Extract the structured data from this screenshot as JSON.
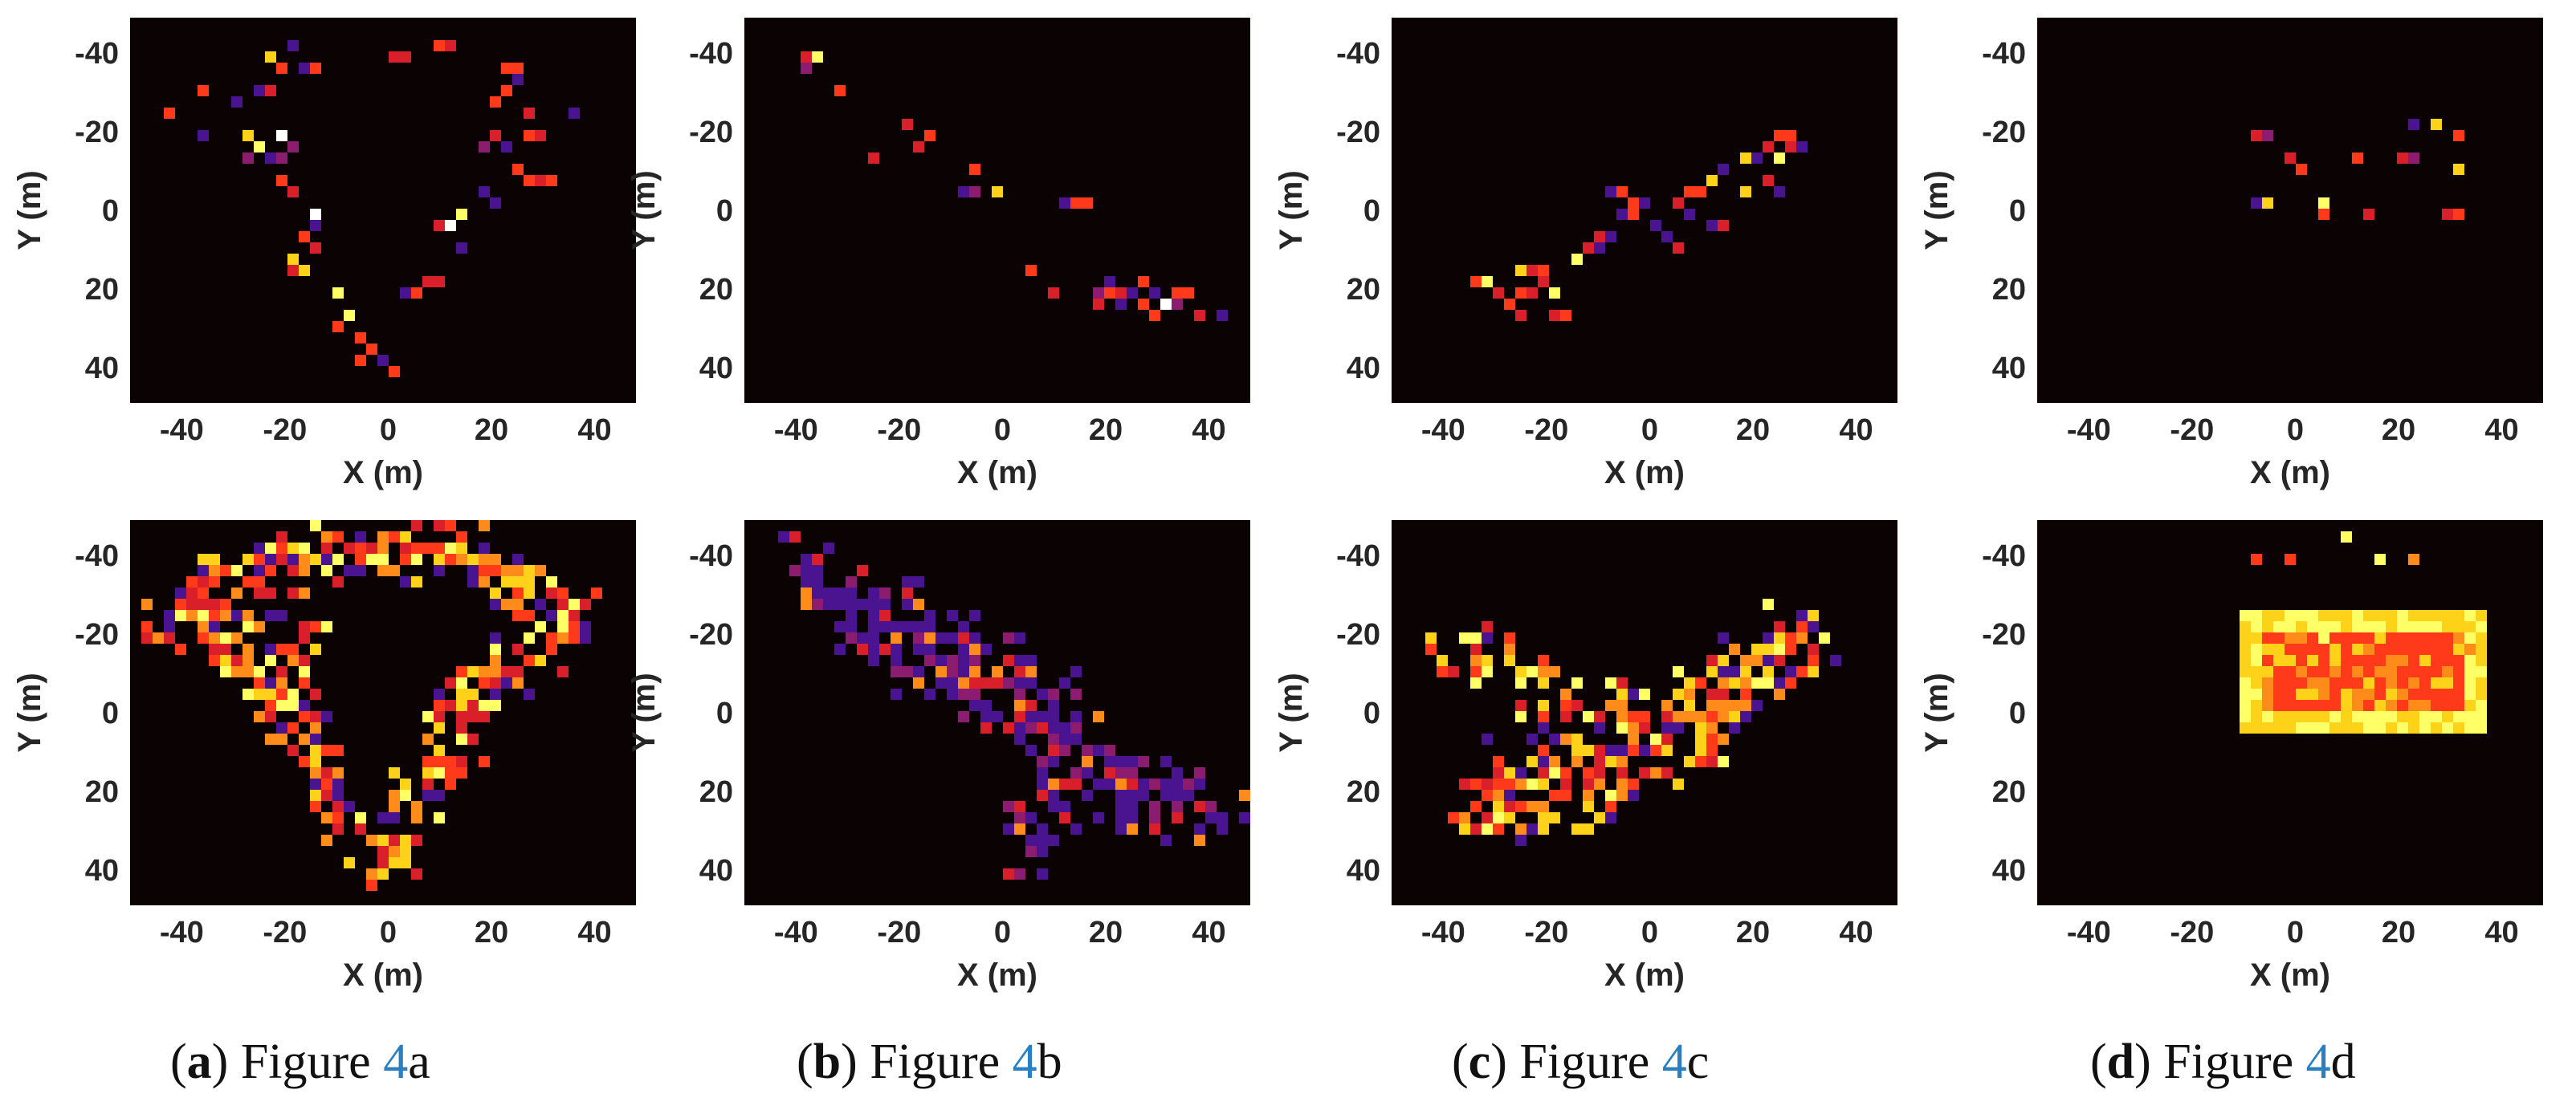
{
  "figure": {
    "colormap": [
      "#0b0303",
      "#2b0a4a",
      "#4a1491",
      "#8c1c6f",
      "#d81f2a",
      "#ff3a1a",
      "#ff8c1a",
      "#ffd21a",
      "#ffff66",
      "#ffffff"
    ],
    "axis_ticks": {
      "x": [
        "-40",
        "-20",
        "0",
        "20",
        "40"
      ],
      "y": [
        "-40",
        "-20",
        "0",
        "20",
        "40"
      ]
    },
    "captions": [
      {
        "letter": "a",
        "text": "Figure ",
        "ref": "4",
        "suffix": "a"
      },
      {
        "letter": "b",
        "text": "Figure ",
        "ref": "4",
        "suffix": "b"
      },
      {
        "letter": "c",
        "text": "Figure ",
        "ref": "4",
        "suffix": "c"
      },
      {
        "letter": "d",
        "text": "Figure ",
        "ref": "4",
        "suffix": "d"
      }
    ]
  },
  "chart_data": [
    {
      "id": "a-top",
      "type": "heatmap",
      "title": "",
      "xlabel": "X (m)",
      "ylabel": "Y (m)",
      "xlim": [
        -50,
        48
      ],
      "ylim": [
        -49,
        49
      ],
      "y_reversed": true,
      "style": "sparse",
      "shape": "diamond-outline",
      "points": [
        [
          -18,
          -42
        ],
        [
          -22,
          -40
        ],
        [
          10,
          -42
        ],
        [
          4,
          -38
        ],
        [
          22,
          -36
        ],
        [
          26,
          -34
        ],
        [
          -35,
          -30
        ],
        [
          -30,
          -28
        ],
        [
          36,
          -24
        ],
        [
          30,
          -18
        ],
        [
          -42,
          -24
        ],
        [
          -28,
          -18
        ],
        [
          -25,
          -15
        ],
        [
          -22,
          -12
        ],
        [
          -20,
          -8
        ],
        [
          -18,
          -4
        ],
        [
          -15,
          0
        ],
        [
          -14,
          4
        ],
        [
          -16,
          8
        ],
        [
          -18,
          12
        ],
        [
          -16,
          16
        ],
        [
          -10,
          22
        ],
        [
          -8,
          28
        ],
        [
          -5,
          32
        ],
        [
          -3,
          36
        ],
        [
          0,
          38
        ],
        [
          20,
          -20
        ],
        [
          22,
          -15
        ],
        [
          25,
          -10
        ],
        [
          18,
          -5
        ],
        [
          14,
          0
        ],
        [
          13,
          5
        ],
        [
          15,
          10
        ],
        [
          10,
          18
        ],
        [
          6,
          22
        ],
        [
          28,
          -25
        ],
        [
          -36,
          -20
        ],
        [
          -24,
          -30
        ],
        [
          -14,
          -36
        ],
        [
          30,
          -8
        ],
        [
          -20,
          -20
        ],
        [
          20,
          -28
        ]
      ]
    },
    {
      "id": "b-top",
      "type": "heatmap",
      "title": "",
      "xlabel": "X (m)",
      "ylabel": "Y (m)",
      "xlim": [
        -50,
        48
      ],
      "ylim": [
        -49,
        49
      ],
      "y_reversed": true,
      "style": "sparse",
      "shape": "diagonal-band",
      "points": [
        [
          -38,
          -40
        ],
        [
          -36,
          -38
        ],
        [
          -32,
          -30
        ],
        [
          -18,
          -22
        ],
        [
          -15,
          -20
        ],
        [
          -5,
          -10
        ],
        [
          0,
          -5
        ],
        [
          12,
          -2
        ],
        [
          14,
          -3
        ],
        [
          20,
          18
        ],
        [
          22,
          20
        ],
        [
          25,
          20
        ],
        [
          26,
          22
        ],
        [
          28,
          18
        ],
        [
          30,
          22
        ],
        [
          32,
          24
        ],
        [
          35,
          22
        ],
        [
          38,
          26
        ],
        [
          42,
          28
        ],
        [
          28,
          24
        ],
        [
          24,
          24
        ],
        [
          18,
          25
        ],
        [
          10,
          20
        ],
        [
          6,
          14
        ],
        [
          30,
          20
        ],
        [
          34,
          20
        ],
        [
          -24,
          -12
        ],
        [
          -8,
          -6
        ]
      ]
    },
    {
      "id": "c-top",
      "type": "heatmap",
      "title": "",
      "xlabel": "X (m)",
      "ylabel": "Y (m)",
      "xlim": [
        -50,
        48
      ],
      "ylim": [
        -49,
        49
      ],
      "y_reversed": true,
      "style": "sparse",
      "shape": "diagonal-band",
      "points": [
        [
          -30,
          22
        ],
        [
          -28,
          25
        ],
        [
          -25,
          20
        ],
        [
          -24,
          16
        ],
        [
          -22,
          14
        ],
        [
          -20,
          18
        ],
        [
          -18,
          22
        ],
        [
          -15,
          12
        ],
        [
          -12,
          10
        ],
        [
          -10,
          8
        ],
        [
          -8,
          6
        ],
        [
          -5,
          2
        ],
        [
          -3,
          -2
        ],
        [
          0,
          -1
        ],
        [
          2,
          4
        ],
        [
          5,
          -3
        ],
        [
          8,
          0
        ],
        [
          10,
          -5
        ],
        [
          12,
          -8
        ],
        [
          15,
          -10
        ],
        [
          18,
          -12
        ],
        [
          20,
          -14
        ],
        [
          22,
          -15
        ],
        [
          25,
          -18
        ],
        [
          28,
          -20
        ],
        [
          30,
          -16
        ],
        [
          26,
          -12
        ],
        [
          22,
          -8
        ],
        [
          -26,
          28
        ],
        [
          -18,
          26
        ],
        [
          -32,
          18
        ],
        [
          4,
          8
        ],
        [
          -6,
          -4
        ],
        [
          12,
          4
        ],
        [
          18,
          -4
        ]
      ]
    },
    {
      "id": "d-top",
      "type": "heatmap",
      "title": "",
      "xlabel": "X (m)",
      "ylabel": "Y (m)",
      "xlim": [
        -50,
        48
      ],
      "ylim": [
        -49,
        49
      ],
      "y_reversed": true,
      "style": "sparse",
      "shape": "scattered",
      "points": [
        [
          -8,
          -18
        ],
        [
          -5,
          -2
        ],
        [
          6,
          -2
        ],
        [
          6,
          2
        ],
        [
          14,
          0
        ],
        [
          24,
          -21
        ],
        [
          28,
          -21
        ],
        [
          32,
          -19
        ],
        [
          32,
          -10
        ],
        [
          31,
          2
        ],
        [
          13,
          -12
        ],
        [
          20,
          -12
        ],
        [
          -2,
          -13
        ]
      ]
    },
    {
      "id": "a-bottom",
      "type": "heatmap",
      "title": "",
      "xlabel": "X (m)",
      "ylabel": "Y (m)",
      "xlim": [
        -50,
        48
      ],
      "ylim": [
        -49,
        49
      ],
      "y_reversed": true,
      "style": "dense",
      "shape": "diamond-outline",
      "points": [
        [
          -42,
          -27
        ],
        [
          -38,
          -26
        ],
        [
          -36,
          -30
        ],
        [
          -30,
          -34
        ],
        [
          -24,
          -38
        ],
        [
          -20,
          -40
        ],
        [
          -18,
          -36
        ],
        [
          -14,
          -38
        ],
        [
          -10,
          -38
        ],
        [
          -5,
          -38
        ],
        [
          0,
          -38
        ],
        [
          5,
          -38
        ],
        [
          10,
          -42
        ],
        [
          14,
          -40
        ],
        [
          18,
          -38
        ],
        [
          20,
          -36
        ],
        [
          24,
          -32
        ],
        [
          28,
          -30
        ],
        [
          32,
          -28
        ],
        [
          36,
          -26
        ],
        [
          34,
          -22
        ],
        [
          30,
          -18
        ],
        [
          26,
          -14
        ],
        [
          22,
          -10
        ],
        [
          18,
          -6
        ],
        [
          15,
          -2
        ],
        [
          13,
          2
        ],
        [
          12,
          6
        ],
        [
          14,
          10
        ],
        [
          10,
          14
        ],
        [
          6,
          20
        ],
        [
          3,
          26
        ],
        [
          1,
          32
        ],
        [
          0,
          36
        ],
        [
          -2,
          38
        ],
        [
          -6,
          34
        ],
        [
          -8,
          28
        ],
        [
          -10,
          22
        ],
        [
          -12,
          16
        ],
        [
          -14,
          10
        ],
        [
          -16,
          4
        ],
        [
          -18,
          0
        ],
        [
          -20,
          -4
        ],
        [
          -22,
          -8
        ],
        [
          -25,
          -12
        ],
        [
          -28,
          -16
        ],
        [
          -32,
          -20
        ],
        [
          -36,
          -22
        ],
        [
          -40,
          -24
        ],
        [
          -20,
          -12
        ],
        [
          -18,
          -18
        ],
        [
          -26,
          -30
        ]
      ]
    },
    {
      "id": "b-bottom",
      "type": "heatmap",
      "title": "",
      "xlabel": "X (m)",
      "ylabel": "Y (m)",
      "xlim": [
        -50,
        48
      ],
      "ylim": [
        -49,
        49
      ],
      "y_reversed": true,
      "style": "dense",
      "shape": "diagonal-band",
      "points": [
        [
          -40,
          -38
        ],
        [
          -36,
          -36
        ],
        [
          -32,
          -32
        ],
        [
          -28,
          -28
        ],
        [
          -24,
          -24
        ],
        [
          -20,
          -22
        ],
        [
          -16,
          -18
        ],
        [
          -12,
          -16
        ],
        [
          -8,
          -12
        ],
        [
          -4,
          -10
        ],
        [
          0,
          -8
        ],
        [
          4,
          -6
        ],
        [
          8,
          -4
        ],
        [
          12,
          -2
        ],
        [
          14,
          0
        ],
        [
          16,
          6
        ],
        [
          18,
          12
        ],
        [
          20,
          16
        ],
        [
          22,
          18
        ],
        [
          24,
          20
        ],
        [
          26,
          22
        ],
        [
          28,
          20
        ],
        [
          30,
          22
        ],
        [
          32,
          24
        ],
        [
          36,
          22
        ],
        [
          40,
          26
        ],
        [
          42,
          28
        ],
        [
          10,
          10
        ],
        [
          6,
          6
        ],
        [
          0,
          0
        ],
        [
          -6,
          -4
        ],
        [
          -12,
          -8
        ],
        [
          -18,
          -12
        ],
        [
          -24,
          -16
        ],
        [
          -30,
          -22
        ],
        [
          -34,
          -28
        ],
        [
          14,
          18
        ],
        [
          10,
          24
        ],
        [
          6,
          30
        ],
        [
          4,
          36
        ],
        [
          -2,
          -14
        ],
        [
          -10,
          -20
        ],
        [
          -20,
          -28
        ],
        [
          20,
          24
        ],
        [
          28,
          26
        ]
      ]
    },
    {
      "id": "c-bottom",
      "type": "heatmap",
      "title": "",
      "xlabel": "X (m)",
      "ylabel": "Y (m)",
      "xlim": [
        -50,
        48
      ],
      "ylim": [
        -49,
        49
      ],
      "y_reversed": true,
      "style": "dense",
      "shape": "diagonal-band",
      "points": [
        [
          -30,
          22
        ],
        [
          -26,
          20
        ],
        [
          -22,
          18
        ],
        [
          -18,
          14
        ],
        [
          -14,
          12
        ],
        [
          -10,
          10
        ],
        [
          -6,
          6
        ],
        [
          -2,
          2
        ],
        [
          2,
          0
        ],
        [
          6,
          -2
        ],
        [
          10,
          -4
        ],
        [
          14,
          -6
        ],
        [
          18,
          -8
        ],
        [
          22,
          -12
        ],
        [
          26,
          -16
        ],
        [
          30,
          -18
        ],
        [
          28,
          -20
        ],
        [
          24,
          -14
        ],
        [
          20,
          -10
        ],
        [
          16,
          -4
        ],
        [
          12,
          2
        ],
        [
          8,
          6
        ],
        [
          4,
          10
        ],
        [
          0,
          12
        ],
        [
          -4,
          14
        ],
        [
          -8,
          16
        ],
        [
          -12,
          20
        ],
        [
          -16,
          22
        ],
        [
          -20,
          24
        ],
        [
          -24,
          24
        ],
        [
          -28,
          26
        ],
        [
          -32,
          24
        ],
        [
          -22,
          -4
        ],
        [
          -18,
          -6
        ],
        [
          10,
          10
        ],
        [
          -36,
          -14
        ],
        [
          -30,
          -14
        ],
        [
          -20,
          6
        ],
        [
          -14,
          18
        ],
        [
          14,
          4
        ],
        [
          18,
          -14
        ],
        [
          -26,
          12
        ],
        [
          6,
          12
        ],
        [
          -6,
          -2
        ]
      ]
    },
    {
      "id": "d-bottom",
      "type": "heatmap",
      "title": "",
      "xlabel": "X (m)",
      "ylabel": "Y (m)",
      "xlim": [
        -50,
        48
      ],
      "ylim": [
        -49,
        49
      ],
      "y_reversed": true,
      "style": "rectangle",
      "shape": "filled-rectangle",
      "region": {
        "x": [
          -10,
          36
        ],
        "y": [
          -26,
          5
        ]
      },
      "points": [
        [
          -8,
          -40
        ],
        [
          0,
          -40
        ],
        [
          10,
          -46
        ],
        [
          16,
          -40
        ],
        [
          24,
          -40
        ],
        [
          -4,
          -16
        ],
        [
          6,
          -18
        ],
        [
          18,
          -14
        ],
        [
          28,
          -20
        ],
        [
          34,
          -16
        ],
        [
          -2,
          -2
        ],
        [
          10,
          -4
        ],
        [
          24,
          -2
        ],
        [
          30,
          2
        ],
        [
          -8,
          2
        ],
        [
          4,
          -10
        ],
        [
          14,
          -8
        ],
        [
          22,
          -10
        ]
      ]
    }
  ]
}
